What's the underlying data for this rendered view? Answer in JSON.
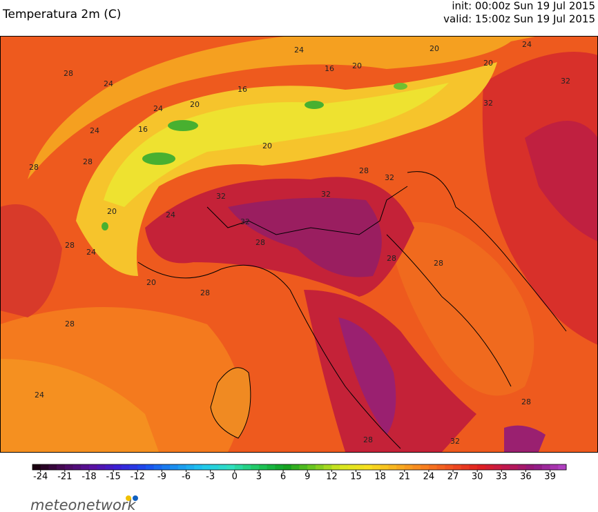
{
  "header": {
    "title": "Temperatura 2m (C)",
    "init": "init: 00:00z Sun 19 Jul 2015",
    "valid": "valid: 15:00z Sun 19 Jul 2015"
  },
  "map": {
    "contour_labels": [
      24,
      24,
      20,
      16,
      24,
      28,
      20,
      20,
      16,
      24,
      28,
      28,
      20,
      24,
      16,
      20,
      20,
      32,
      32,
      32,
      32,
      28,
      28,
      28,
      28,
      32,
      28,
      24,
      28,
      32,
      28,
      32,
      24,
      20,
      24,
      28,
      28
    ]
  },
  "colorbar": {
    "lim": [
      -25,
      41
    ],
    "ticks": [
      -24,
      -21,
      -18,
      -15,
      -12,
      -9,
      -6,
      -3,
      0,
      3,
      6,
      9,
      12,
      15,
      18,
      21,
      24,
      27,
      30,
      33,
      36,
      39
    ],
    "colors": [
      "#1a0010",
      "#4a0a5a",
      "#5a10a0",
      "#3a20d8",
      "#1a50f0",
      "#1a90f0",
      "#20c8f0",
      "#30e0c0",
      "#20c860",
      "#10a020",
      "#70c820",
      "#d8e820",
      "#f8e020",
      "#f8b020",
      "#f88020",
      "#f05020",
      "#e02020",
      "#c01850",
      "#901880",
      "#b040c0"
    ]
  },
  "logo": {
    "text": "meteonetwork"
  }
}
